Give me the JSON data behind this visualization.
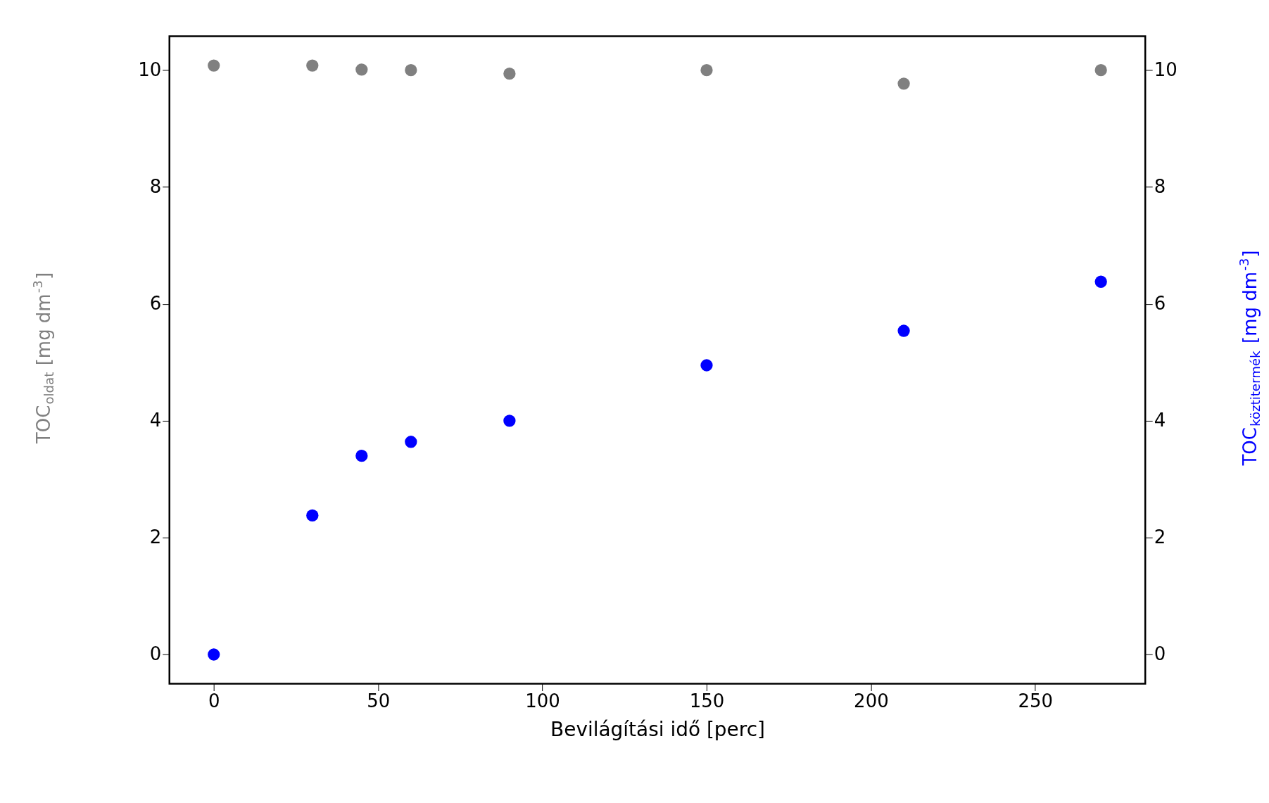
{
  "chart_data": {
    "type": "scatter",
    "xlabel": "Bevilágítási idő [perc]",
    "ylabel": "TOC$_{oldat}$ [mg dm$^{-3}$]",
    "y2label": "TOC$_{köztitermék}$ [mg dm$^{-3}$]",
    "x": [
      0,
      30,
      45,
      60,
      90,
      150,
      210,
      270
    ],
    "series": [
      {
        "color": "#808080",
        "values": [
          10.08,
          10.08,
          10.01,
          10.0,
          9.94,
          10.0,
          9.77,
          10.0
        ]
      },
      {
        "color": "#0000ff",
        "axis": "y2",
        "values": [
          0,
          2.38,
          3.4,
          3.64,
          4.0,
          4.95,
          5.54,
          6.38
        ]
      }
    ],
    "xlim": [
      -13.5,
      283.5
    ],
    "xticks": [
      0,
      50,
      100,
      150,
      200,
      250
    ],
    "ylim": [
      -0.5,
      10.58
    ],
    "yticks": [
      0,
      2,
      4,
      6,
      8,
      10
    ],
    "y2lim": [
      -0.5,
      10.58
    ],
    "y2ticks": [
      0,
      2,
      4,
      6,
      8,
      10
    ],
    "marker": "circle",
    "grid": false,
    "legend": false
  }
}
